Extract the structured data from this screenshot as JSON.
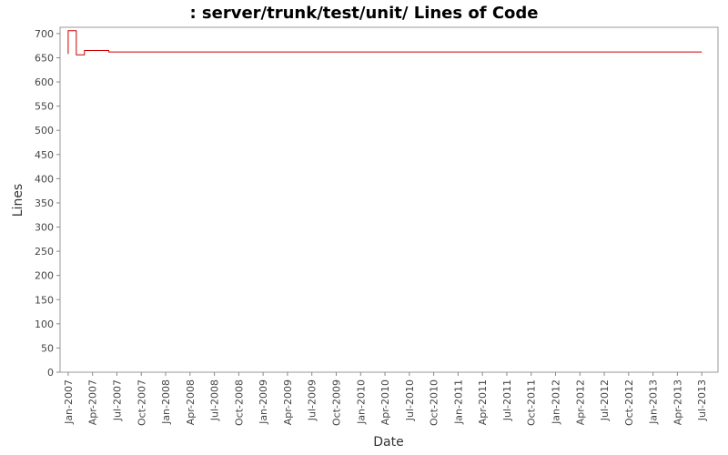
{
  "chart_data": {
    "type": "step-line",
    "title": " : server/trunk/test/unit/ Lines of Code",
    "x_label": "Date",
    "y_label": "Lines",
    "series": [
      {
        "name": "Lines",
        "color": "#cc0000",
        "x": [
          "2007-01",
          "2007-01",
          "2007-02",
          "2007-03",
          "2007-06",
          "2013-07"
        ],
        "values": [
          658,
          706,
          656,
          665,
          662,
          662
        ]
      }
    ],
    "xlim": [
      "2006-12",
      "2013-09"
    ],
    "xticks": [
      {
        "value": "2007-01",
        "label": "Jan-2007"
      },
      {
        "value": "2007-04",
        "label": "Apr-2007"
      },
      {
        "value": "2007-07",
        "label": "Jul-2007"
      },
      {
        "value": "2007-10",
        "label": "Oct-2007"
      },
      {
        "value": "2008-01",
        "label": "Jan-2008"
      },
      {
        "value": "2008-04",
        "label": "Apr-2008"
      },
      {
        "value": "2008-07",
        "label": "Jul-2008"
      },
      {
        "value": "2008-10",
        "label": "Oct-2008"
      },
      {
        "value": "2009-01",
        "label": "Jan-2009"
      },
      {
        "value": "2009-04",
        "label": "Apr-2009"
      },
      {
        "value": "2009-07",
        "label": "Jul-2009"
      },
      {
        "value": "2009-10",
        "label": "Oct-2009"
      },
      {
        "value": "2010-01",
        "label": "Jan-2010"
      },
      {
        "value": "2010-04",
        "label": "Apr-2010"
      },
      {
        "value": "2010-07",
        "label": "Jul-2010"
      },
      {
        "value": "2010-10",
        "label": "Oct-2010"
      },
      {
        "value": "2011-01",
        "label": "Jan-2011"
      },
      {
        "value": "2011-04",
        "label": "Apr-2011"
      },
      {
        "value": "2011-07",
        "label": "Jul-2011"
      },
      {
        "value": "2011-10",
        "label": "Oct-2011"
      },
      {
        "value": "2012-01",
        "label": "Jan-2012"
      },
      {
        "value": "2012-04",
        "label": "Apr-2012"
      },
      {
        "value": "2012-07",
        "label": "Jul-2012"
      },
      {
        "value": "2012-10",
        "label": "Oct-2012"
      },
      {
        "value": "2013-01",
        "label": "Jan-2013"
      },
      {
        "value": "2013-04",
        "label": "Apr-2013"
      },
      {
        "value": "2013-07",
        "label": "Jul-2013"
      }
    ],
    "ylim": [
      0,
      713
    ],
    "yticks": [
      0,
      50,
      100,
      150,
      200,
      250,
      300,
      350,
      400,
      450,
      500,
      550,
      600,
      650,
      700
    ],
    "grid": false
  }
}
